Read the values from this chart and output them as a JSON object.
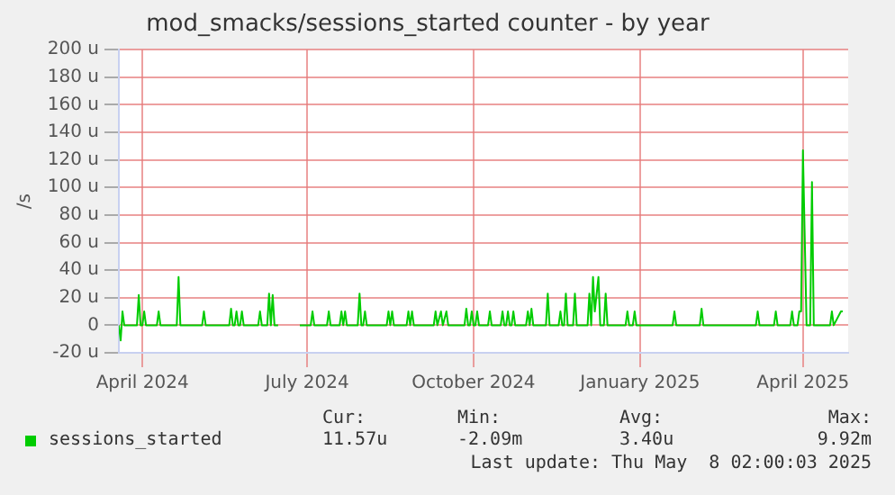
{
  "chart_data": {
    "type": "line",
    "title": "mod_smacks/sessions_started counter - by year",
    "ylabel": "/s",
    "xlim": [
      "2024-03-19",
      "2025-04-26"
    ],
    "xticks": [
      {
        "value": "2024-04-01",
        "label": "April 2024"
      },
      {
        "value": "2024-07-01",
        "label": "July 2024"
      },
      {
        "value": "2024-10-01",
        "label": "October 2024"
      },
      {
        "value": "2025-01-01",
        "label": "January 2025"
      },
      {
        "value": "2025-04-01",
        "label": "April 2025"
      }
    ],
    "ylim": [
      -20,
      200
    ],
    "yticks": [
      {
        "value": -20,
        "label": "-20 u"
      },
      0,
      {
        "value": 20,
        "label": "20 u"
      },
      {
        "value": 40,
        "label": "40 u"
      },
      {
        "value": 60,
        "label": "60 u"
      },
      {
        "value": 80,
        "label": "80 u"
      },
      {
        "value": 100,
        "label": "100 u"
      },
      {
        "value": 120,
        "label": "120 u"
      },
      {
        "value": 140,
        "label": "140 u"
      },
      {
        "value": 160,
        "label": "160 u"
      },
      {
        "value": 180,
        "label": "180 u"
      },
      {
        "value": 200,
        "label": "200 u"
      }
    ],
    "grid": true,
    "legend": "bottom left",
    "marker": "none",
    "line_style": "solid",
    "annotations": [
      "Cur:",
      "Min:",
      "Avg:",
      "Max:",
      "11.57u",
      "-2.09m",
      "3.40u",
      "9.92m",
      "Last update: Thu May  8 02:00:03 2025"
    ],
    "series": [
      {
        "name": "sessions_started",
        "color": "#00cc00",
        "x": [
          "2024-03-19",
          "2024-03-20",
          "2024-03-21",
          "2024-03-22",
          "2024-03-29",
          "2024-03-30",
          "2024-03-31",
          "2024-04-01",
          "2024-04-02",
          "2024-04-03",
          "2024-04-09",
          "2024-04-10",
          "2024-04-11",
          "2024-04-20",
          "2024-04-21",
          "2024-04-22",
          "2024-05-04",
          "2024-05-05",
          "2024-05-06",
          "2024-05-19",
          "2024-05-20",
          "2024-05-21",
          "2024-05-22",
          "2024-05-23",
          "2024-05-24",
          "2024-05-25",
          "2024-05-26",
          "2024-05-27",
          "2024-06-04",
          "2024-06-05",
          "2024-06-06",
          "2024-06-09",
          "2024-06-10",
          "2024-06-11",
          "2024-06-12",
          "2024-06-13",
          "2024-06-15",
          "2024-06-16",
          "2024-06-27",
          "2024-07-03",
          "2024-07-04",
          "2024-07-05",
          "2024-07-12",
          "2024-07-13",
          "2024-07-14",
          "2024-07-19",
          "2024-07-20",
          "2024-07-21",
          "2024-07-22",
          "2024-07-23",
          "2024-07-29",
          "2024-07-30",
          "2024-07-31",
          "2024-08-01",
          "2024-08-02",
          "2024-08-03",
          "2024-08-14",
          "2024-08-15",
          "2024-08-16",
          "2024-08-17",
          "2024-08-18",
          "2024-08-25",
          "2024-08-26",
          "2024-08-27",
          "2024-08-28",
          "2024-08-29",
          "2024-09-09",
          "2024-09-10",
          "2024-09-11",
          "2024-09-13",
          "2024-09-14",
          "2024-09-16",
          "2024-09-17",
          "2024-09-26",
          "2024-09-27",
          "2024-09-28",
          "2024-09-29",
          "2024-09-30",
          "2024-10-01",
          "2024-10-02",
          "2024-10-03",
          "2024-10-04",
          "2024-10-09",
          "2024-10-10",
          "2024-10-11",
          "2024-10-16",
          "2024-10-17",
          "2024-10-18",
          "2024-10-19",
          "2024-10-20",
          "2024-10-21",
          "2024-10-22",
          "2024-10-23",
          "2024-10-24",
          "2024-10-30",
          "2024-10-31",
          "2024-11-01",
          "2024-11-02",
          "2024-11-03",
          "2024-11-10",
          "2024-11-11",
          "2024-11-12",
          "2024-11-17",
          "2024-11-18",
          "2024-11-19",
          "2024-11-20",
          "2024-11-21",
          "2024-11-22",
          "2024-11-25",
          "2024-11-26",
          "2024-11-27",
          "2024-12-03",
          "2024-12-04",
          "2024-12-05",
          "2024-12-06",
          "2024-12-07",
          "2024-12-09",
          "2024-12-10",
          "2024-12-12",
          "2024-12-13",
          "2024-12-14",
          "2024-12-24",
          "2024-12-25",
          "2024-12-26",
          "2024-12-28",
          "2024-12-29",
          "2024-12-30",
          "2025-01-19",
          "2025-01-20",
          "2025-01-21",
          "2025-02-03",
          "2025-02-04",
          "2025-02-05",
          "2025-03-06",
          "2025-03-07",
          "2025-03-08",
          "2025-03-16",
          "2025-03-17",
          "2025-03-18",
          "2025-03-25",
          "2025-03-26",
          "2025-03-27",
          "2025-03-29",
          "2025-03-30",
          "2025-03-31",
          "2025-04-01",
          "2025-04-03",
          "2025-04-05",
          "2025-04-06",
          "2025-04-07",
          "2025-04-16",
          "2025-04-17",
          "2025-04-18",
          "2025-04-22",
          "2025-04-23"
        ],
        "values": [
          0,
          -11,
          10,
          0,
          0,
          22,
          0,
          0,
          10,
          0,
          0,
          10,
          0,
          0,
          35,
          0,
          0,
          10,
          0,
          0,
          12,
          0,
          0,
          10,
          0,
          0,
          10,
          0,
          0,
          10,
          0,
          0,
          23,
          0,
          22,
          0,
          0,
          null,
          0,
          0,
          10,
          0,
          0,
          10,
          0,
          0,
          10,
          0,
          10,
          0,
          0,
          23,
          0,
          0,
          10,
          0,
          0,
          10,
          0,
          10,
          0,
          0,
          10,
          0,
          10,
          0,
          0,
          10,
          0,
          10,
          0,
          10,
          0,
          0,
          12,
          0,
          0,
          10,
          0,
          0,
          10,
          0,
          0,
          10,
          0,
          0,
          10,
          0,
          0,
          10,
          0,
          0,
          10,
          0,
          0,
          10,
          0,
          12,
          0,
          0,
          23,
          0,
          0,
          10,
          0,
          0,
          23,
          0,
          0,
          23,
          0,
          0,
          23,
          0,
          35,
          10,
          35,
          0,
          0,
          23,
          0,
          0,
          10,
          0,
          0,
          10,
          0,
          0,
          10,
          0,
          0,
          12,
          0,
          0,
          10,
          0,
          0,
          10,
          0,
          0,
          10,
          0,
          0,
          10,
          10,
          127,
          0,
          0,
          104,
          0,
          0,
          10,
          0,
          10,
          10
        ]
      }
    ]
  }
}
